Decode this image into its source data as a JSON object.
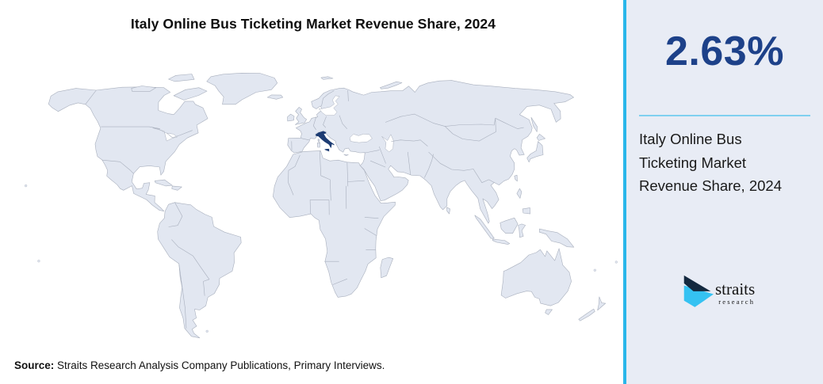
{
  "title": "Italy Online Bus Ticketing Market Revenue Share, 2024",
  "map": {
    "highlighted_country": "Italy",
    "highlight_color": "#1d3c73",
    "land_color": "#e2e7f1",
    "border_color": "#a8afbd",
    "ocean_color": "#ffffff"
  },
  "panel": {
    "value": "2.63%",
    "value_color": "#1d4189",
    "description": "Italy Online Bus Ticketing Market Revenue Share, 2024",
    "background": "#e8ecf5",
    "accent_border_color": "#2ab7ea",
    "divider_color": "#7fd0f0"
  },
  "source": {
    "label": "Source:",
    "text": "Straits Research Analysis Company Publications, Primary Interviews."
  },
  "logo": {
    "wordmark": "straits",
    "subtitle": "research",
    "navy": "#14293f",
    "cyan": "#35c2f2"
  }
}
